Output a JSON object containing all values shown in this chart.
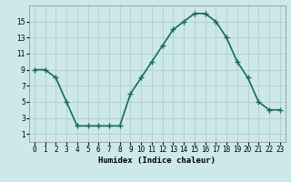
{
  "x": [
    0,
    1,
    2,
    3,
    4,
    5,
    6,
    7,
    8,
    9,
    10,
    11,
    12,
    13,
    14,
    15,
    16,
    17,
    18,
    19,
    20,
    21,
    22,
    23
  ],
  "y": [
    9,
    9,
    8,
    5,
    2,
    2,
    2,
    2,
    2,
    6,
    8,
    10,
    12,
    14,
    15,
    16,
    16,
    15,
    13,
    10,
    8,
    5,
    4,
    4
  ],
  "line_color": "#1a6b5a",
  "marker": "+",
  "marker_color": "#1a6b5a",
  "bg_color": "#cce8e8",
  "grid_color": "#b0cccc",
  "xlabel": "Humidex (Indice chaleur)",
  "xlabel_fontsize": 6.5,
  "xlabel_bold": true,
  "ylim": [
    0,
    17
  ],
  "xlim": [
    -0.5,
    23.5
  ],
  "yticks": [
    1,
    3,
    5,
    7,
    9,
    11,
    13,
    15
  ],
  "xtick_labels": [
    "0",
    "1",
    "2",
    "3",
    "4",
    "5",
    "6",
    "7",
    "8",
    "9",
    "10",
    "11",
    "12",
    "13",
    "14",
    "15",
    "16",
    "17",
    "18",
    "19",
    "20",
    "21",
    "22",
    "23"
  ],
  "tick_fontsize": 5.5,
  "linewidth": 1.2,
  "markersize": 4
}
